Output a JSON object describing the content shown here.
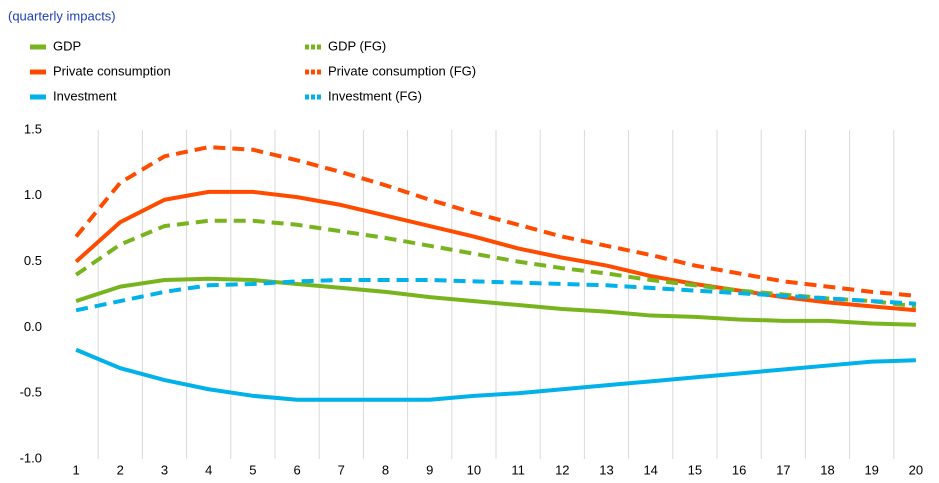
{
  "chart_data": {
    "type": "line",
    "subtitle": "(quarterly impacts)",
    "categories": [
      "1",
      "2",
      "3",
      "4",
      "5",
      "6",
      "7",
      "8",
      "9",
      "10",
      "11",
      "12",
      "13",
      "14",
      "15",
      "16",
      "17",
      "18",
      "19",
      "20"
    ],
    "series": [
      {
        "name": "GDP",
        "color": "#78b41e",
        "dashed": false,
        "values": [
          0.2,
          0.31,
          0.36,
          0.37,
          0.36,
          0.33,
          0.3,
          0.27,
          0.23,
          0.2,
          0.17,
          0.14,
          0.12,
          0.09,
          0.08,
          0.06,
          0.05,
          0.05,
          0.03,
          0.02
        ]
      },
      {
        "name": "Private consumption",
        "color": "#ff4b00",
        "dashed": false,
        "values": [
          0.5,
          0.8,
          0.97,
          1.03,
          1.03,
          0.99,
          0.93,
          0.85,
          0.77,
          0.69,
          0.6,
          0.53,
          0.47,
          0.39,
          0.33,
          0.28,
          0.23,
          0.19,
          0.16,
          0.13
        ]
      },
      {
        "name": "Investment",
        "color": "#00b1ea",
        "dashed": false,
        "values": [
          -0.17,
          -0.31,
          -0.4,
          -0.47,
          -0.52,
          -0.55,
          -0.55,
          -0.55,
          -0.55,
          -0.52,
          -0.5,
          -0.47,
          -0.44,
          -0.41,
          -0.38,
          -0.35,
          -0.32,
          -0.29,
          -0.26,
          -0.25
        ]
      },
      {
        "name": "GDP (FG)",
        "color": "#78b41e",
        "dashed": true,
        "values": [
          0.4,
          0.63,
          0.77,
          0.81,
          0.81,
          0.78,
          0.73,
          0.68,
          0.62,
          0.56,
          0.5,
          0.45,
          0.41,
          0.36,
          0.32,
          0.28,
          0.25,
          0.22,
          0.2,
          0.16
        ]
      },
      {
        "name": "Private consumption  (FG)",
        "color": "#ff4b00",
        "dashed": true,
        "values": [
          0.69,
          1.1,
          1.3,
          1.37,
          1.35,
          1.27,
          1.18,
          1.08,
          0.97,
          0.87,
          0.78,
          0.69,
          0.62,
          0.55,
          0.47,
          0.41,
          0.35,
          0.31,
          0.27,
          0.24
        ]
      },
      {
        "name": "Investment  (FG)",
        "color": "#00b1ea",
        "dashed": true,
        "values": [
          0.13,
          0.2,
          0.27,
          0.32,
          0.33,
          0.35,
          0.36,
          0.36,
          0.36,
          0.35,
          0.34,
          0.33,
          0.32,
          0.3,
          0.28,
          0.26,
          0.24,
          0.22,
          0.2,
          0.18
        ]
      }
    ],
    "ylim": [
      -1.0,
      1.5
    ],
    "yticks": [
      1.5,
      {
        "value": 1.0,
        "label": "1.0"
      },
      0.5,
      {
        "value": 0,
        "label": "0.0"
      },
      -0.5,
      {
        "value": -1.0,
        "label": "-1.0"
      }
    ],
    "category_separators": true
  }
}
